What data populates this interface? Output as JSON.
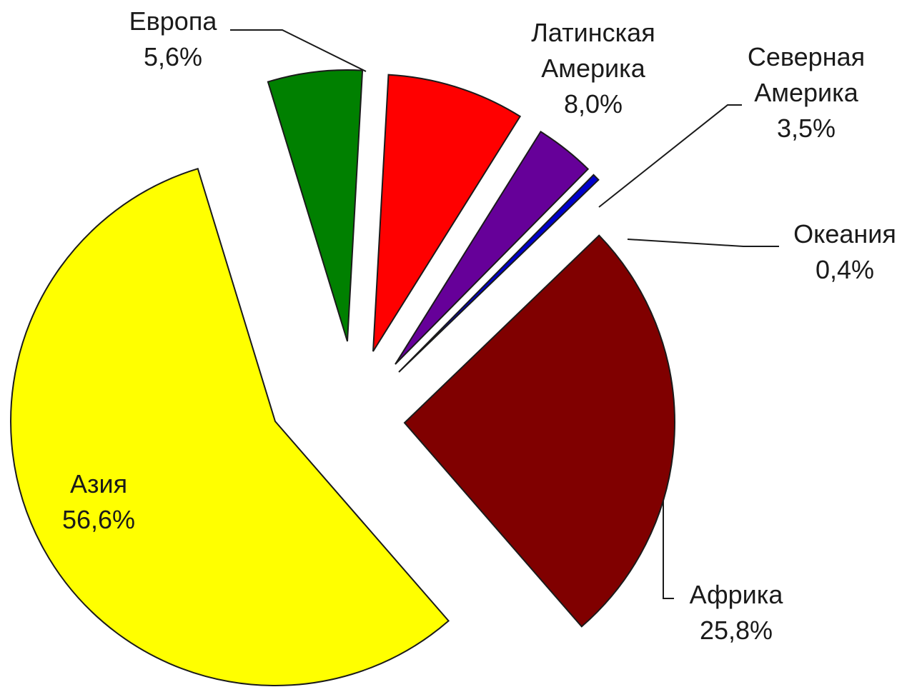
{
  "chart_data": {
    "type": "pie",
    "exploded": true,
    "slices": [
      {
        "name": "Европа",
        "value": 5.6,
        "value_label": "5,6%",
        "color": "#008000"
      },
      {
        "name": "Латинская Америка",
        "name_lines": [
          "Латинская",
          "Америка"
        ],
        "value": 8.0,
        "value_label": "8,0%",
        "color": "#ff0000"
      },
      {
        "name": "Северная Америка",
        "name_lines": [
          "Северная",
          "Америка"
        ],
        "value": 3.5,
        "value_label": "3,5%",
        "color": "#660099"
      },
      {
        "name": "Океания",
        "value": 0.4,
        "value_label": "0,4%",
        "color": "#0000cc"
      },
      {
        "name": "Африка",
        "value": 25.8,
        "value_label": "25,8%",
        "color": "#800000"
      },
      {
        "name": "Азия",
        "value": 56.6,
        "value_label": "56,6%",
        "color": "#ffff00"
      }
    ]
  }
}
